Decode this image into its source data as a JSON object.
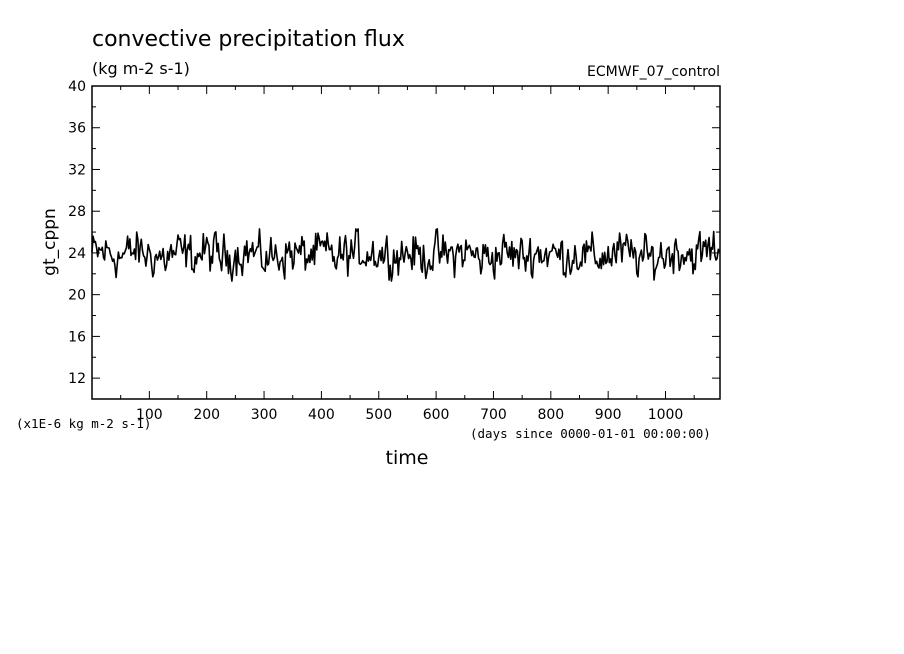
{
  "chart_data": {
    "type": "line",
    "title": "convective precipitation flux",
    "units": "(kg m-2 s-1)",
    "dataset": "ECMWF_07_control",
    "xlabel": "time",
    "x_units": "(days since 0000-01-01 00:00:00)",
    "ylabel": "gt_cppn",
    "y_scale_note": "(x1E-6 kg m-2 s-1)",
    "xlim": [
      0,
      1095
    ],
    "ylim": [
      10,
      40
    ],
    "x_ticks": [
      100,
      200,
      300,
      400,
      500,
      600,
      700,
      800,
      900,
      1000
    ],
    "y_ticks": [
      12,
      16,
      20,
      24,
      28,
      32,
      36,
      40
    ],
    "grid": false,
    "series": [
      {
        "x": [
          0,
          25,
          50,
          75,
          100,
          125,
          150,
          175,
          200,
          225,
          250,
          275,
          300,
          325,
          350,
          375,
          400,
          425,
          450,
          475,
          500,
          525,
          550,
          575,
          600,
          625,
          650,
          675,
          700,
          725,
          750,
          775,
          800,
          825,
          850,
          875,
          900,
          925,
          950,
          975,
          1000,
          1025,
          1050,
          1075,
          1095
        ],
        "values": [
          23.9,
          24.1,
          23.6,
          24.2,
          23.8,
          23.5,
          24.0,
          23.7,
          24.1,
          23.6,
          23.9,
          24.2,
          23.4,
          23.8,
          24.0,
          23.7,
          24.1,
          23.5,
          23.9,
          24.2,
          24.0,
          23.8,
          24.1,
          23.6,
          23.9,
          23.7,
          24.2,
          23.5,
          23.8,
          24.0,
          23.6,
          24.1,
          23.9,
          23.7,
          24.0,
          23.5,
          23.8,
          24.1,
          23.6,
          23.4,
          23.9,
          24.3,
          23.8,
          24.2,
          24.6
        ],
        "range": [
          21.3,
          26.3
        ]
      }
    ]
  }
}
